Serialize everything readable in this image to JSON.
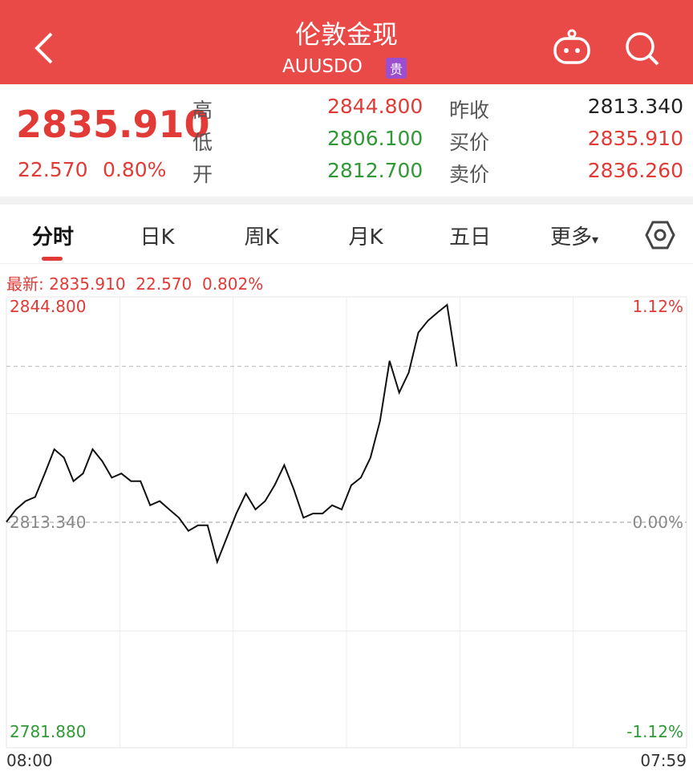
{
  "header": {
    "title": "伦敦金现",
    "subtitle": "AUUSDO",
    "badge": "贵"
  },
  "quote": {
    "price": "2835.910",
    "change": "22.570",
    "change_pct": "0.80%",
    "rows": [
      {
        "label1": "高",
        "value1": "2844.800",
        "label2": "昨收",
        "value2": "2813.340"
      },
      {
        "label1": "低",
        "value1": "2806.100",
        "label2": "买价",
        "value2": "2835.910"
      },
      {
        "label1": "开",
        "value1": "2812.700",
        "label2": "卖价",
        "value2": "2836.260"
      }
    ]
  },
  "tabs": [
    "分时",
    "日K",
    "周K",
    "月K",
    "五日",
    "更多"
  ],
  "info": {
    "label": "最新:",
    "price": "2835.910",
    "change": "22.570",
    "change_pct": "0.802%"
  },
  "chart_data": {
    "type": "line",
    "color": "#111111",
    "values": [
      2813.4,
      2815.2,
      2816.4,
      2817,
      2820.4,
      2823.9,
      2822.7,
      2819.3,
      2820.4,
      2823.9,
      2822.2,
      2819.8,
      2820.4,
      2819.3,
      2819.3,
      2815.8,
      2816.4,
      2815.2,
      2814,
      2812.1,
      2812.9,
      2812.9,
      2807.6,
      2811.1,
      2814.6,
      2817.5,
      2815.2,
      2816.4,
      2818.7,
      2821.6,
      2818.1,
      2814,
      2814.6,
      2814.6,
      2815.8,
      2815.2,
      2818.7,
      2819.8,
      2822.7,
      2828,
      2836.7,
      2832.1,
      2835,
      2840.8,
      2842.5,
      2843.7,
      2844.8,
      2835.91,
      null,
      null,
      null,
      null,
      null,
      null,
      null,
      null,
      null,
      null,
      null,
      null,
      null,
      null,
      null,
      null,
      null,
      null,
      null,
      null,
      null,
      null,
      null,
      null
    ],
    "ylim": [
      2781.88,
      2844.8
    ],
    "yticks": [
      {
        "value": 2844.8,
        "label": "2844.800"
      },
      {
        "value": 2813.34,
        "label": "2813.340"
      },
      {
        "value": 2781.88,
        "label": "2781.880"
      }
    ],
    "y2lim": [
      -1.12,
      1.12
    ],
    "y2ticks": [
      {
        "value": 1.12,
        "label": "1.12%"
      },
      {
        "value": 0,
        "label": "0.00%"
      },
      {
        "value": -1.12,
        "label": "-1.12%"
      }
    ],
    "x_labels": [
      "08:00",
      "07:59"
    ]
  }
}
